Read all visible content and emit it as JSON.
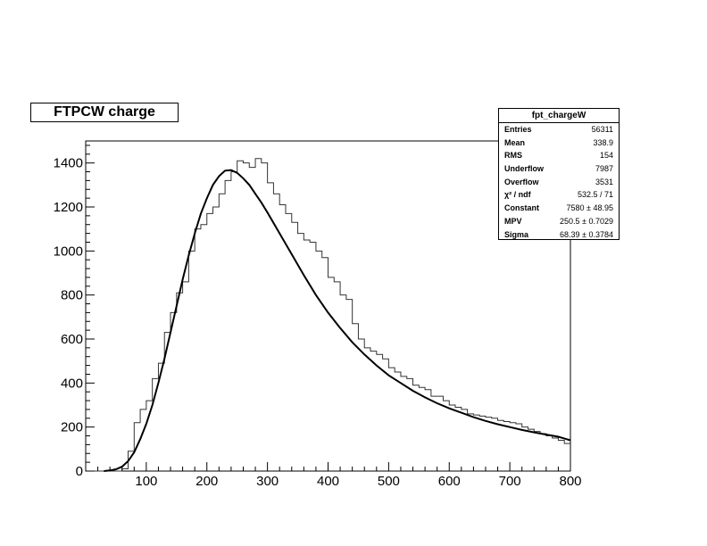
{
  "chart_data": {
    "type": "histogram",
    "title": "FTPCW charge",
    "xlabel": "",
    "ylabel": "",
    "xlim": [
      0,
      800
    ],
    "ylim": [
      0,
      1500
    ],
    "x_ticks": [
      100,
      200,
      300,
      400,
      500,
      600,
      700,
      800
    ],
    "y_ticks": [
      0,
      200,
      400,
      600,
      800,
      1000,
      1200,
      1400
    ],
    "grid": false,
    "bin_width": 10,
    "histogram_bin_lows": [
      0,
      10,
      20,
      30,
      40,
      50,
      60,
      70,
      80,
      90,
      100,
      110,
      120,
      130,
      140,
      150,
      160,
      170,
      180,
      190,
      200,
      210,
      220,
      230,
      240,
      250,
      260,
      270,
      280,
      290,
      300,
      310,
      320,
      330,
      340,
      350,
      360,
      370,
      380,
      390,
      400,
      410,
      420,
      430,
      440,
      450,
      460,
      470,
      480,
      490,
      500,
      510,
      520,
      530,
      540,
      550,
      560,
      570,
      580,
      590,
      600,
      610,
      620,
      630,
      640,
      650,
      660,
      670,
      680,
      690,
      700,
      710,
      720,
      730,
      740,
      750,
      760,
      770,
      780,
      790
    ],
    "histogram_counts": [
      0,
      0,
      0,
      0,
      0,
      0,
      10,
      90,
      220,
      280,
      320,
      420,
      490,
      630,
      720,
      810,
      860,
      1000,
      1100,
      1120,
      1170,
      1200,
      1260,
      1320,
      1360,
      1410,
      1400,
      1380,
      1420,
      1400,
      1310,
      1260,
      1210,
      1170,
      1130,
      1080,
      1050,
      1040,
      1000,
      970,
      880,
      860,
      800,
      780,
      670,
      600,
      560,
      545,
      530,
      510,
      470,
      450,
      430,
      420,
      390,
      380,
      370,
      340,
      340,
      320,
      300,
      290,
      280,
      260,
      255,
      250,
      245,
      240,
      230,
      225,
      220,
      215,
      200,
      190,
      180,
      170,
      160,
      150,
      140,
      125
    ],
    "fit_function": "Landau",
    "fit_curve_x": [
      30,
      40,
      50,
      60,
      70,
      80,
      90,
      100,
      110,
      120,
      130,
      140,
      150,
      160,
      170,
      180,
      190,
      200,
      210,
      220,
      230,
      240,
      250,
      260,
      270,
      280,
      290,
      300,
      320,
      340,
      360,
      380,
      400,
      420,
      440,
      460,
      480,
      500,
      520,
      540,
      560,
      580,
      600,
      620,
      640,
      660,
      680,
      700,
      720,
      740,
      760,
      780,
      800
    ],
    "fit_curve_y": [
      0,
      3,
      8,
      20,
      45,
      85,
      145,
      215,
      300,
      400,
      510,
      630,
      750,
      870,
      980,
      1080,
      1170,
      1240,
      1300,
      1340,
      1365,
      1368,
      1355,
      1330,
      1300,
      1260,
      1220,
      1175,
      1080,
      985,
      890,
      800,
      720,
      650,
      585,
      530,
      480,
      435,
      400,
      365,
      335,
      308,
      285,
      265,
      245,
      228,
      213,
      200,
      187,
      176,
      166,
      156,
      140
    ]
  },
  "stats": {
    "name": "fpt_chargeW",
    "rows": [
      {
        "label": "Entries",
        "value": "56311"
      },
      {
        "label": "Mean",
        "value": "338.9"
      },
      {
        "label": "RMS",
        "value": "154"
      },
      {
        "label": "Underflow",
        "value": "7987"
      },
      {
        "label": "Overflow",
        "value": "3531"
      },
      {
        "label": "χ² / ndf",
        "value": "532.5 / 71"
      },
      {
        "label": "Constant",
        "value": "7580 ± 48.95"
      },
      {
        "label": "MPV",
        "value": "250.5 ± 0.7029"
      },
      {
        "label": "Sigma",
        "value": "68.39 ± 0.3784"
      }
    ]
  }
}
